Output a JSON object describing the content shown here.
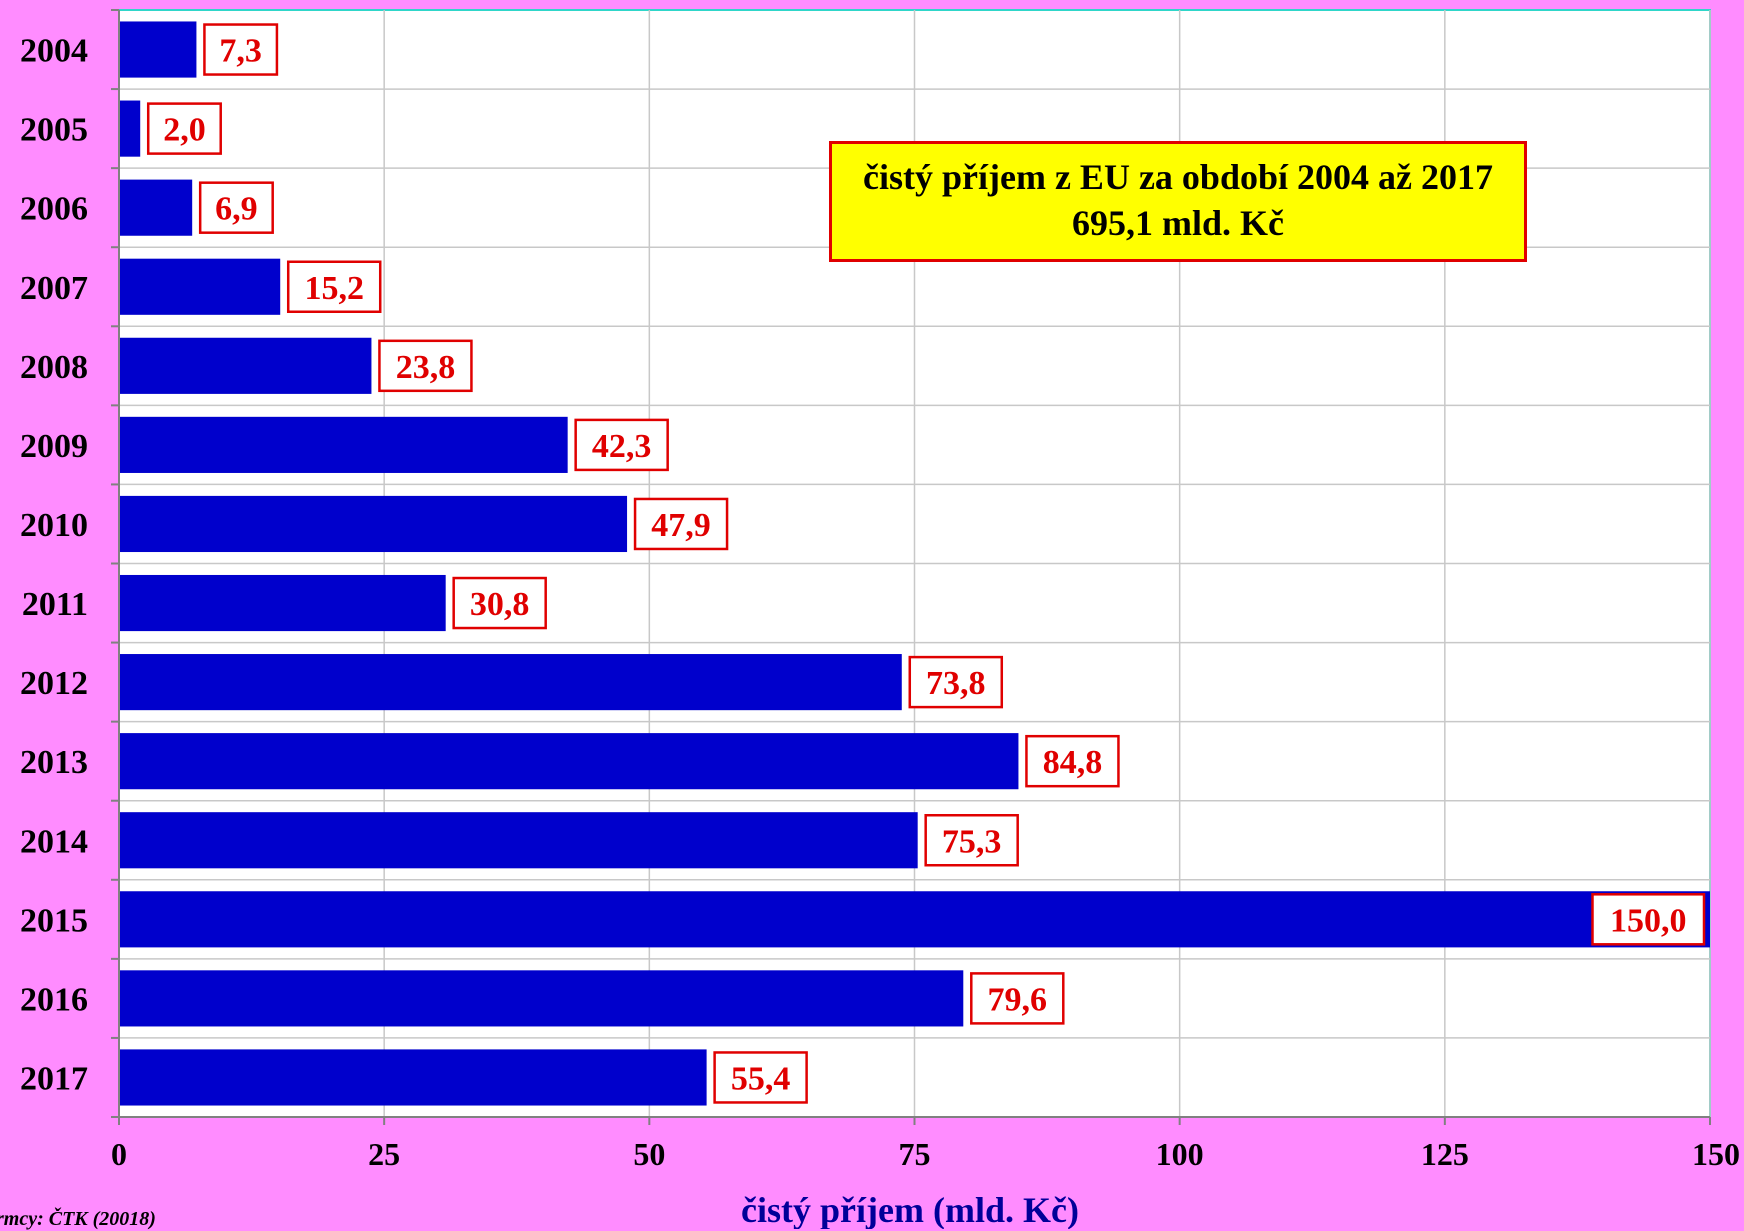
{
  "chart_data": {
    "type": "bar",
    "orientation": "horizontal",
    "categories": [
      "2004",
      "2005",
      "2006",
      "2007",
      "2008",
      "2009",
      "2010",
      "2011",
      "2012",
      "2013",
      "2014",
      "2015",
      "2016",
      "2017"
    ],
    "values": [
      7.3,
      2.0,
      6.9,
      15.2,
      23.8,
      42.3,
      47.9,
      30.8,
      73.8,
      84.8,
      75.3,
      150.0,
      79.6,
      55.4
    ],
    "data_labels": [
      "7,3",
      "2,0",
      "6,9",
      "15,2",
      "23,8",
      "42,3",
      "47,9",
      "30,8",
      "73,8",
      "84,8",
      "75,3",
      "150,0",
      "79,6",
      "55,4"
    ],
    "xlabel": "čistý příjem (mld. Kč)",
    "ylabel": "",
    "xlim": [
      0,
      150
    ],
    "xticks": [
      0,
      25,
      50,
      75,
      100,
      125,
      150
    ],
    "xtick_labels": [
      "0",
      "25",
      "50",
      "75",
      "100",
      "125",
      "150"
    ],
    "grid": true,
    "bar_color": "#0000cc",
    "label_color": "#e00000",
    "plot_background": "#ffffff",
    "page_background": "#ff8cff"
  },
  "annotation": {
    "line1": "čistý příjem z EU za období 2004 až 2017",
    "line2": "695,1 mld. Kč"
  },
  "source": "rmcy: ČTK (20018)"
}
